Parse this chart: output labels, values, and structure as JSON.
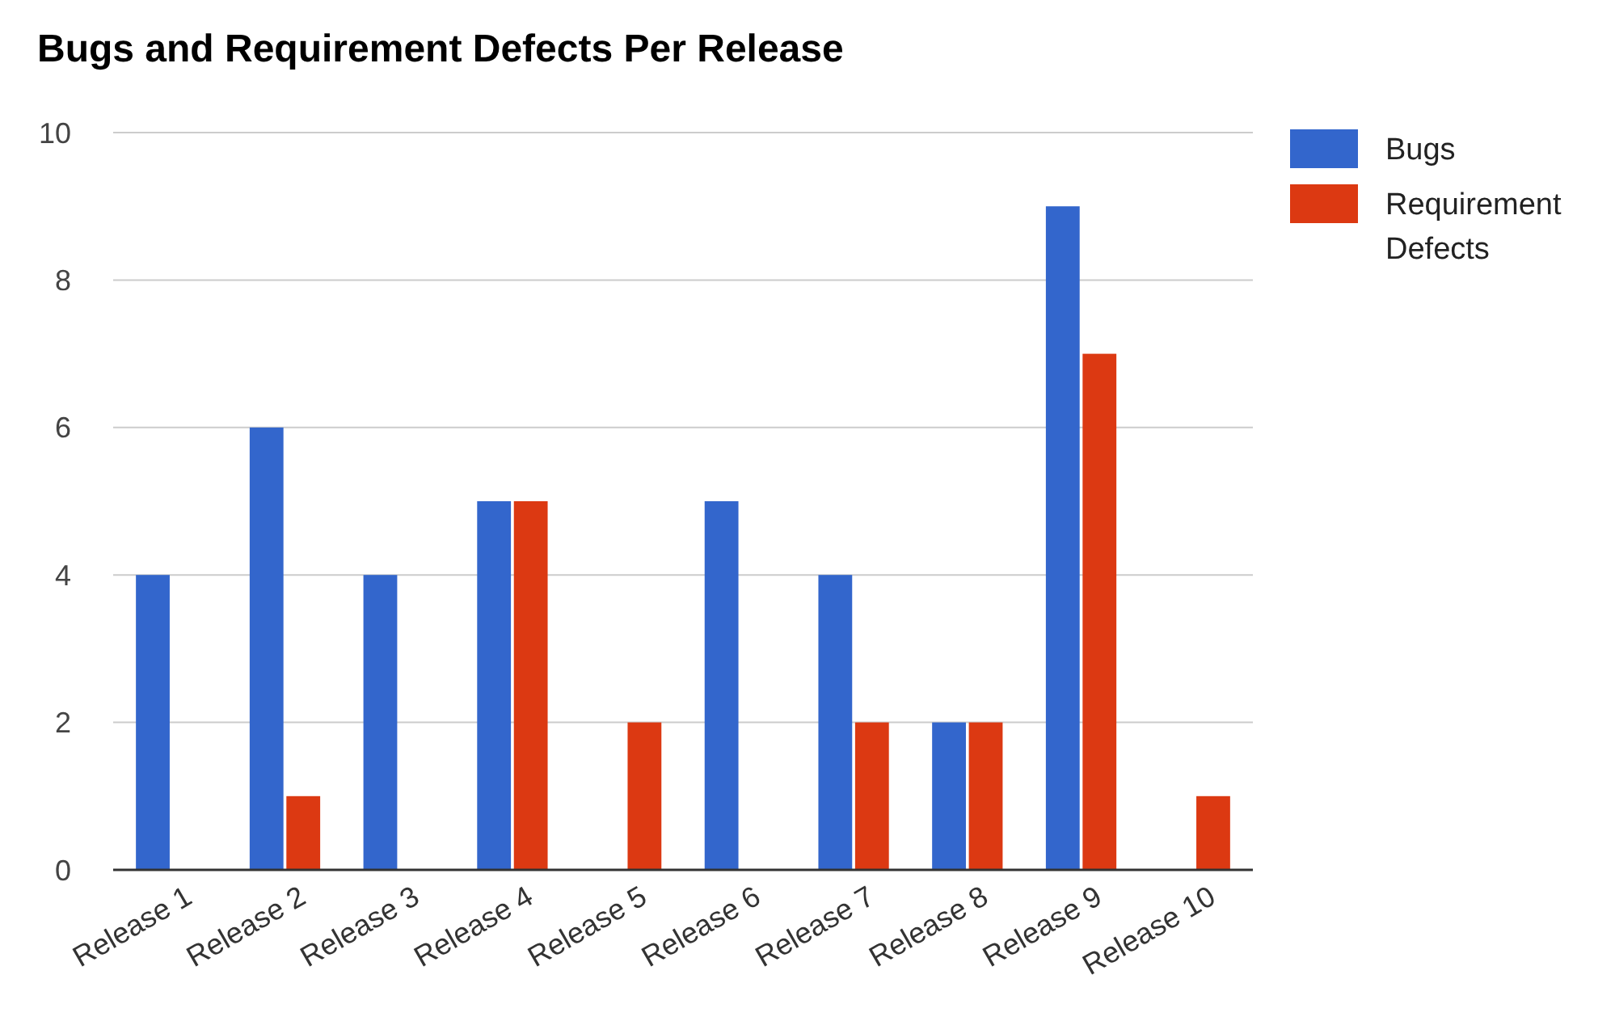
{
  "chart_data": {
    "type": "bar",
    "title": "Bugs and Requirement Defects Per Release",
    "categories": [
      "Release 1",
      "Release 2",
      "Release 3",
      "Release 4",
      "Release 5",
      "Release 6",
      "Release 7",
      "Release 8",
      "Release 9",
      "Release 10"
    ],
    "series": [
      {
        "name": "Bugs",
        "color": "#3366cc",
        "values": [
          4,
          6,
          4,
          5,
          0,
          5,
          4,
          2,
          9,
          0
        ]
      },
      {
        "name": "Requirement Defects",
        "color": "#dc3912",
        "values": [
          0,
          1,
          0,
          5,
          2,
          0,
          2,
          2,
          7,
          1
        ]
      }
    ],
    "ylim": [
      0,
      10
    ],
    "yticks": [
      0,
      2,
      4,
      6,
      8,
      10
    ],
    "grid": "y",
    "legend": "top right"
  }
}
